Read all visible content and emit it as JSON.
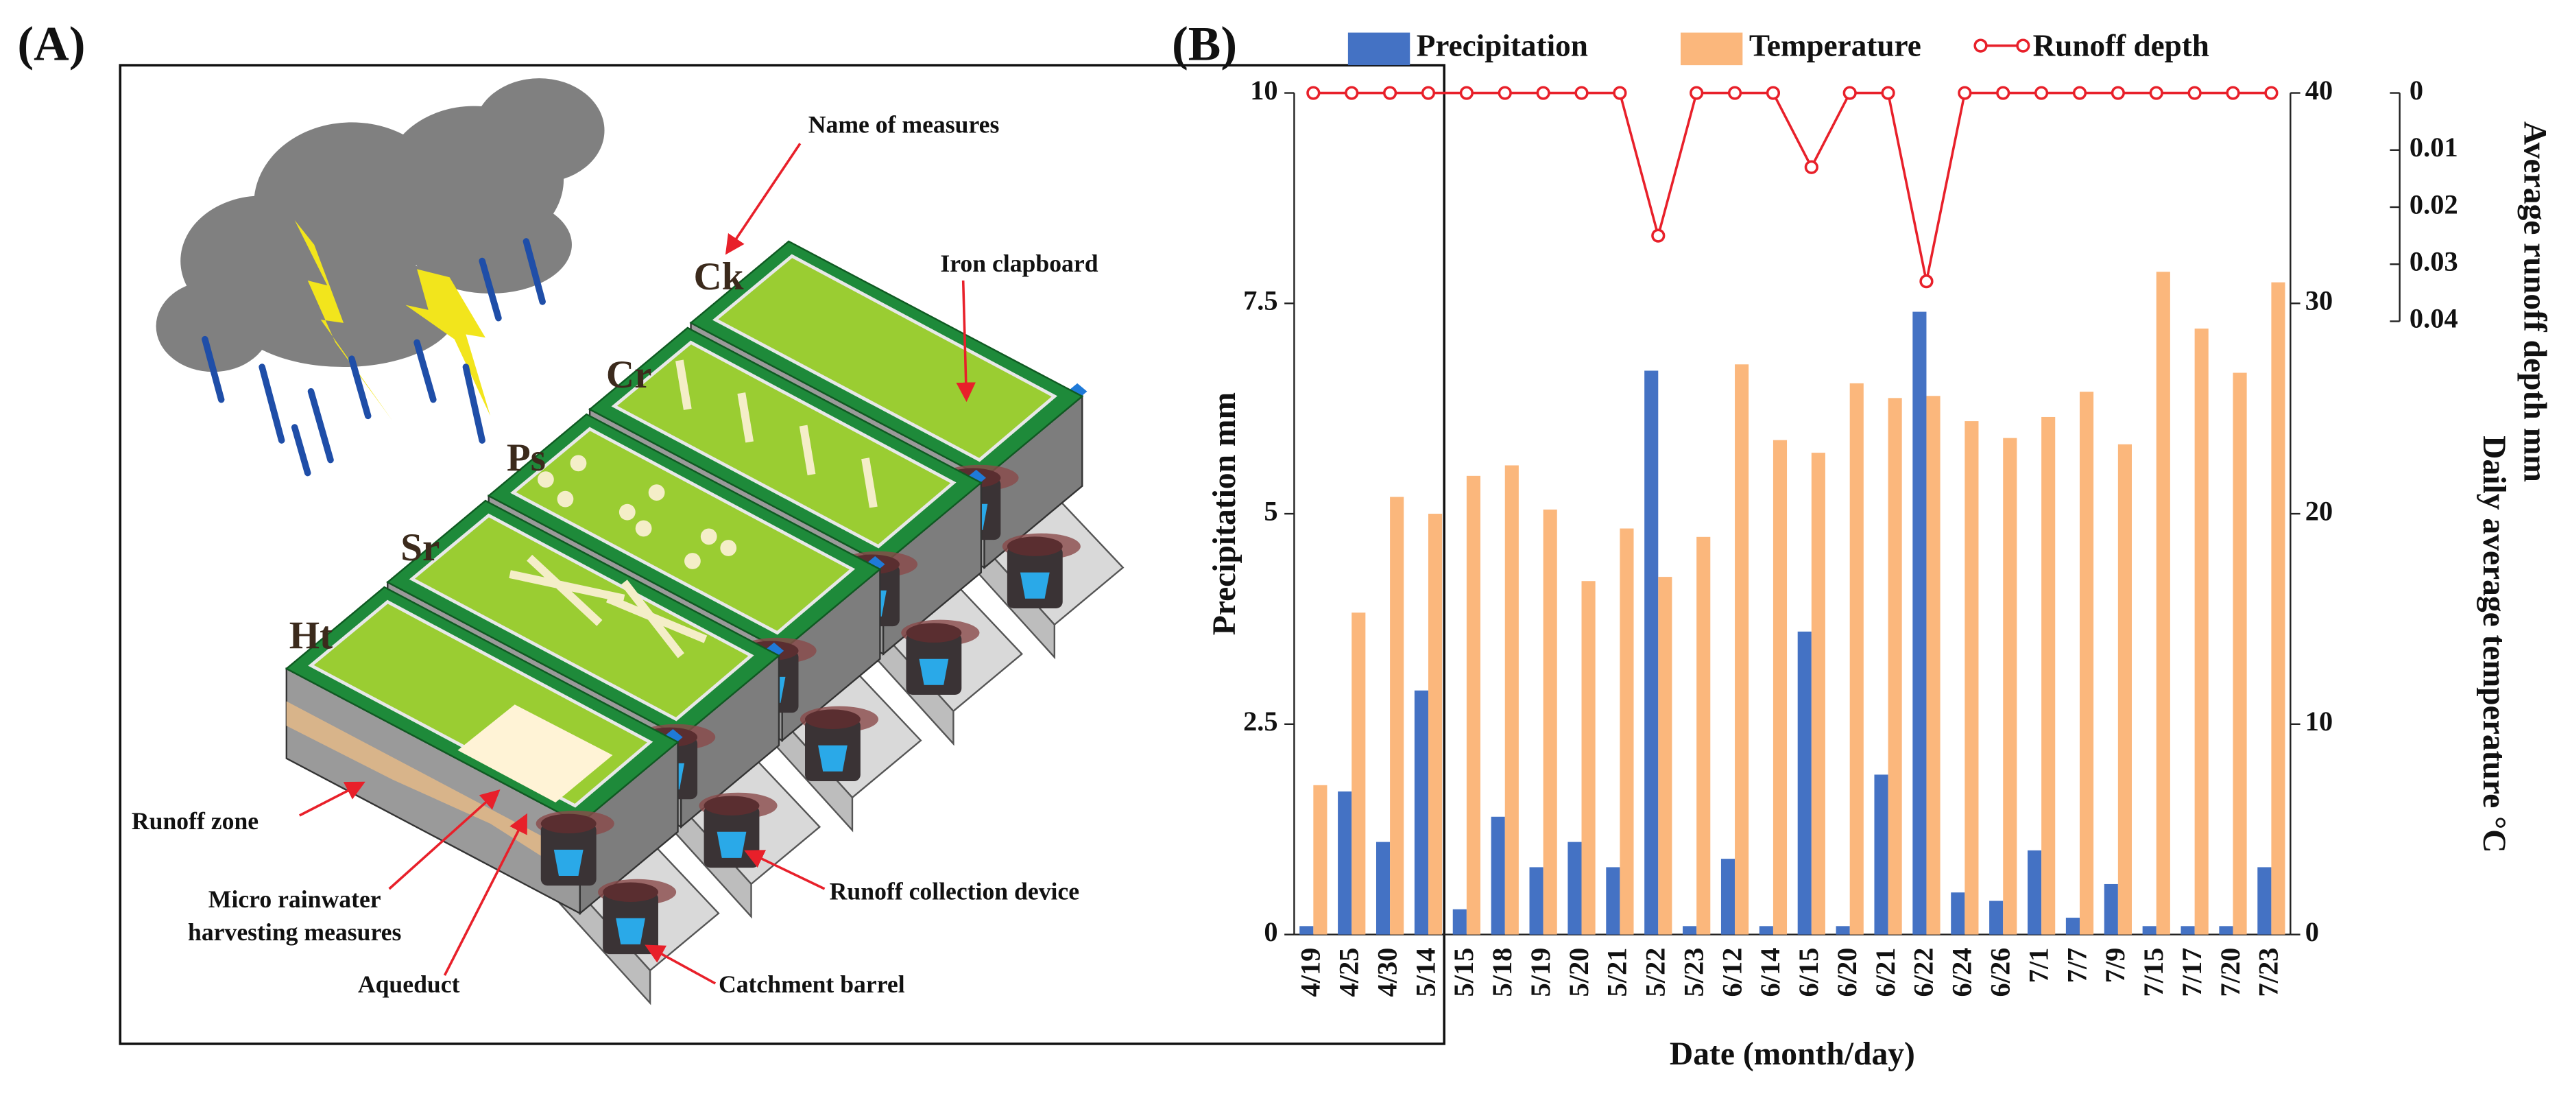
{
  "panel_a": {
    "label": "(A)",
    "plots": [
      "Ht",
      "Sr",
      "Ps",
      "Cr",
      "Ck"
    ],
    "name_label": "Name of measures",
    "iron_label": "Iron clapboard",
    "runoff_zone_label": "Runoff zone",
    "harvesting_label": [
      "Micro rainwater",
      "harvesting measures"
    ],
    "aqueduct_label": "Aqueduct",
    "barrel_label": "Catchment barrel",
    "device_label": "Runoff collection device"
  },
  "chart_data": {
    "type": "bar",
    "panel_label": "(B)",
    "x_label": "Date (month/day)",
    "y_label": "Precipitation mm",
    "y2_label": "Daily average temperature °C",
    "y3_label": "Average runoff depth mm",
    "categories": [
      "4/19",
      "4/25",
      "4/30",
      "5/14",
      "5/15",
      "5/18",
      "5/19",
      "5/20",
      "5/21",
      "5/22",
      "5/23",
      "6/12",
      "6/14",
      "6/15",
      "6/20",
      "6/21",
      "6/22",
      "6/24",
      "6/26",
      "7/1",
      "7/7",
      "7/9",
      "7/15",
      "7/17",
      "7/20",
      "7/23"
    ],
    "series": [
      {
        "name": "Precipitation",
        "color": "#4472c4",
        "kind": "bar",
        "values": [
          0.1,
          1.7,
          1.1,
          2.9,
          0.3,
          1.4,
          0.8,
          1.1,
          0.8,
          6.7,
          0.1,
          0.9,
          0.1,
          3.6,
          0.1,
          1.9,
          7.4,
          0.5,
          0.4,
          1.0,
          0.2,
          0.6,
          0.1,
          0.1,
          0.1,
          0.8
        ]
      },
      {
        "name": "Temperature",
        "color": "#fbb77c",
        "kind": "bar",
        "axis": "y2",
        "values": [
          7.1,
          15.3,
          20.8,
          20.0,
          21.8,
          22.3,
          20.2,
          16.8,
          19.3,
          17.0,
          18.9,
          27.1,
          23.5,
          22.9,
          26.2,
          25.5,
          25.6,
          24.4,
          23.6,
          24.6,
          25.8,
          23.3,
          31.5,
          28.8,
          26.7,
          31.0
        ]
      },
      {
        "name": "Runoff depth",
        "color": "#e8202a",
        "kind": "line",
        "axis": "y3",
        "values": [
          0,
          0,
          0,
          0,
          0,
          0,
          0,
          0,
          0,
          0.025,
          0,
          0,
          0,
          0.013,
          0,
          0,
          0.033,
          0,
          0,
          0,
          0,
          0,
          0,
          0,
          0,
          0
        ]
      }
    ],
    "ylim": [
      0,
      10
    ],
    "yticks": [
      0,
      2.5,
      5,
      7.5,
      10
    ],
    "y2lim": [
      0,
      40
    ],
    "y2ticks": [
      0,
      10,
      20,
      30,
      40
    ],
    "y3lim": [
      0,
      0.04
    ],
    "y3ticks": [
      0,
      0.01,
      0.02,
      0.03,
      0.04
    ],
    "y3_inverted": true,
    "legend": "top"
  }
}
